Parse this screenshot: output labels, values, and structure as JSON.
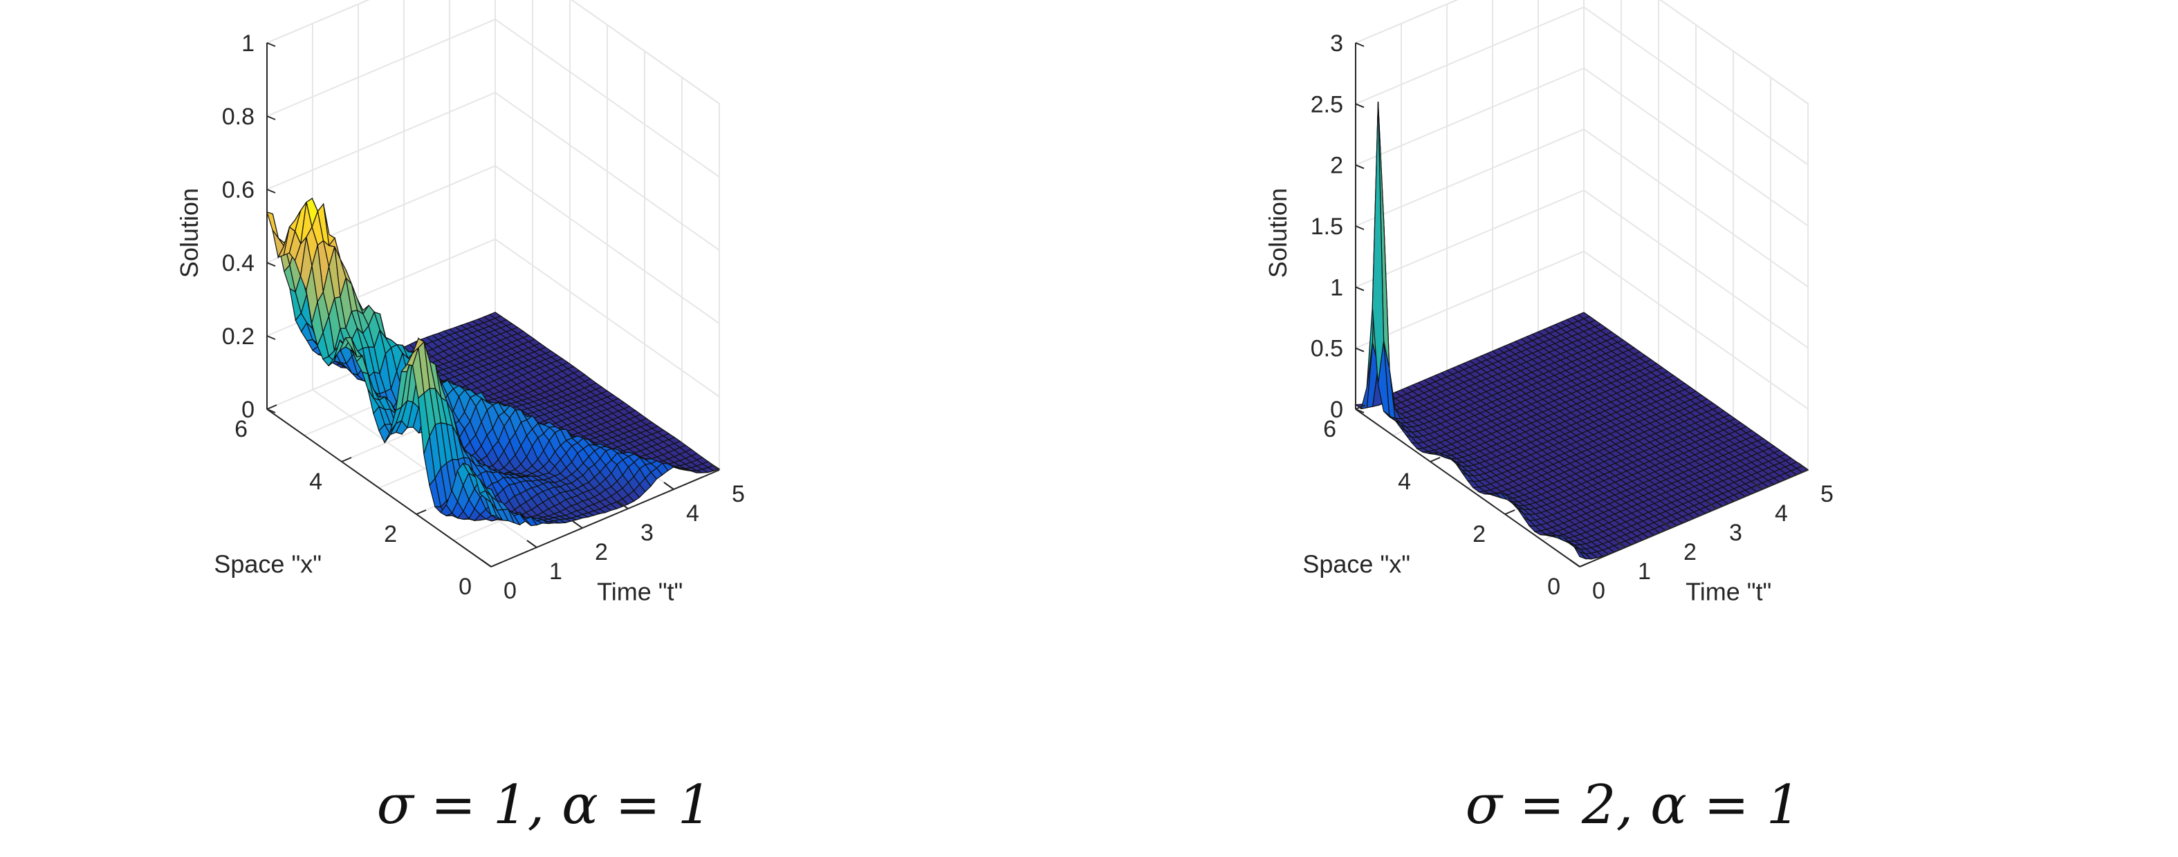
{
  "chart_data": [
    {
      "type": "surface",
      "zlabel": "Solution",
      "xlabel": "Space \"x\"",
      "ylabel": "Time \"t\"",
      "zlim": [
        0,
        1
      ],
      "xlim": [
        0,
        6
      ],
      "ylim": [
        0,
        5
      ],
      "z_ticks": [
        "0",
        "0.2",
        "0.4",
        "0.6",
        "0.8",
        "1"
      ],
      "x_ticks": [
        "0",
        "2",
        "4",
        "6"
      ],
      "y_ticks": [
        "0",
        "1",
        "2",
        "3",
        "4",
        "5"
      ],
      "grid": true,
      "caption": "σ = 1, α = 1",
      "peak_solution": 0.6
    },
    {
      "type": "surface",
      "zlabel": "Solution",
      "xlabel": "Space \"x\"",
      "ylabel": "Time \"t\"",
      "zlim": [
        0,
        3
      ],
      "xlim": [
        0,
        6
      ],
      "ylim": [
        0,
        5
      ],
      "z_ticks": [
        "0",
        "0.5",
        "1",
        "1.5",
        "2",
        "2.5",
        "3"
      ],
      "x_ticks": [
        "0",
        "2",
        "4",
        "6"
      ],
      "y_ticks": [
        "0",
        "1",
        "2",
        "3",
        "4",
        "5"
      ],
      "grid": true,
      "caption": "σ = 2, α = 1",
      "peak_solution": 2.45
    }
  ]
}
